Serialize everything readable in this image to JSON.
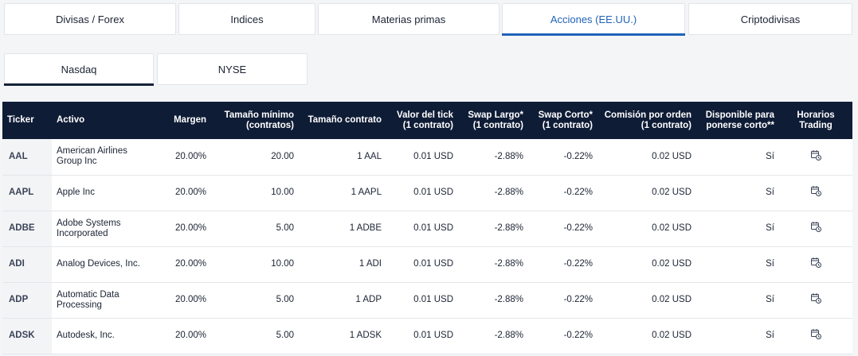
{
  "category_tabs": [
    {
      "label": "Divisas / Forex",
      "active": false
    },
    {
      "label": "Indices",
      "active": false
    },
    {
      "label": "Materias primas",
      "active": false
    },
    {
      "label": "Acciones (EE.UU.)",
      "active": true
    },
    {
      "label": "Criptodivisas",
      "active": false
    }
  ],
  "exchange_tabs": [
    {
      "label": "Nasdaq",
      "active": true
    },
    {
      "label": "NYSE",
      "active": false
    }
  ],
  "table": {
    "headers": {
      "ticker": "Ticker",
      "activo": "Activo",
      "margen": "Margen",
      "tamano_minimo_1": "Tamaño mínimo",
      "tamano_minimo_2": "(contratos)",
      "tamano_contrato": "Tamaño contrato",
      "valor_tick_1": "Valor del tick",
      "valor_tick_2": "(1 contrato)",
      "swap_largo_1": "Swap Largo*",
      "swap_largo_2": "(1 contrato)",
      "swap_corto_1": "Swap Corto*",
      "swap_corto_2": "(1 contrato)",
      "comision_1": "Comisión por orden",
      "comision_2": "(1 contrato)",
      "disponible_1": "Disponible para",
      "disponible_2": "ponerse corto**",
      "horarios": "Horarios Trading"
    },
    "rows": [
      {
        "ticker": "AAL",
        "activo_1": "American Airlines",
        "activo_2": "Group Inc",
        "margen": "20.00%",
        "min": "20.00",
        "contrato": "1 AAL",
        "tick": "0.01 USD",
        "swap_largo": "-2.88%",
        "swap_corto": "-0.22%",
        "comision": "0.02 USD",
        "disponible": "Sí",
        "horarios_icon": "calendar-clock-icon"
      },
      {
        "ticker": "AAPL",
        "activo_1": "Apple Inc",
        "activo_2": "",
        "margen": "20.00%",
        "min": "10.00",
        "contrato": "1 AAPL",
        "tick": "0.01 USD",
        "swap_largo": "-2.88%",
        "swap_corto": "-0.22%",
        "comision": "0.02 USD",
        "disponible": "Sí",
        "horarios_icon": "calendar-clock-icon"
      },
      {
        "ticker": "ADBE",
        "activo_1": "Adobe Systems",
        "activo_2": "Incorporated",
        "margen": "20.00%",
        "min": "5.00",
        "contrato": "1 ADBE",
        "tick": "0.01 USD",
        "swap_largo": "-2.88%",
        "swap_corto": "-0.22%",
        "comision": "0.02 USD",
        "disponible": "Sí",
        "horarios_icon": "calendar-clock-icon"
      },
      {
        "ticker": "ADI",
        "activo_1": "Analog Devices, Inc.",
        "activo_2": "",
        "margen": "20.00%",
        "min": "10.00",
        "contrato": "1 ADI",
        "tick": "0.01 USD",
        "swap_largo": "-2.88%",
        "swap_corto": "-0.22%",
        "comision": "0.02 USD",
        "disponible": "Sí",
        "horarios_icon": "calendar-clock-icon"
      },
      {
        "ticker": "ADP",
        "activo_1": "Automatic Data",
        "activo_2": "Processing",
        "margen": "20.00%",
        "min": "5.00",
        "contrato": "1 ADP",
        "tick": "0.01 USD",
        "swap_largo": "-2.88%",
        "swap_corto": "-0.22%",
        "comision": "0.02 USD",
        "disponible": "Sí",
        "horarios_icon": "calendar-clock-icon"
      },
      {
        "ticker": "ADSK",
        "activo_1": "Autodesk, Inc.",
        "activo_2": "",
        "margen": "20.00%",
        "min": "5.00",
        "contrato": "1 ADSK",
        "tick": "0.01 USD",
        "swap_largo": "-2.88%",
        "swap_corto": "-0.22%",
        "comision": "0.02 USD",
        "disponible": "Sí",
        "horarios_icon": "calendar-clock-icon"
      }
    ]
  },
  "colors": {
    "accent": "#1f63b8",
    "header_bg": "#0f1c36",
    "page_bg": "#f4f5f7"
  }
}
